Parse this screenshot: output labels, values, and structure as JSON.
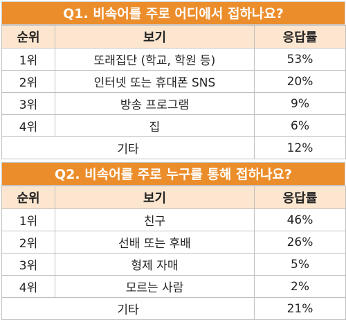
{
  "q1": {
    "title": "Q1. 비속어를 주로 어디에서 접하나요?",
    "headers": {
      "rank": "순위",
      "choice": "보기",
      "rate": "응답률"
    },
    "rows": [
      {
        "rank": "1위",
        "choice": "또래집단 (학교, 학원 등)",
        "rate": "53%"
      },
      {
        "rank": "2위",
        "choice": "인터넷 또는 휴대폰 SNS",
        "rate": "20%"
      },
      {
        "rank": "3위",
        "choice": "방송 프로그램",
        "rate": "9%"
      },
      {
        "rank": "4위",
        "choice": "집",
        "rate": "6%"
      }
    ],
    "other": {
      "choice": "기타",
      "rate": "12%"
    }
  },
  "q2": {
    "title": "Q2. 비속어를 주로 누구를 통해 접하나요?",
    "headers": {
      "rank": "순위",
      "choice": "보기",
      "rate": "응답률"
    },
    "rows": [
      {
        "rank": "1위",
        "choice": "친구",
        "rate": "46%"
      },
      {
        "rank": "2위",
        "choice": "선배 또는 후배",
        "rate": "26%"
      },
      {
        "rank": "3위",
        "choice": "형제 자매",
        "rate": "5%"
      },
      {
        "rank": "4위",
        "choice": "모르는 사람",
        "rate": "2%"
      }
    ],
    "other": {
      "choice": "기타",
      "rate": "21%"
    }
  }
}
